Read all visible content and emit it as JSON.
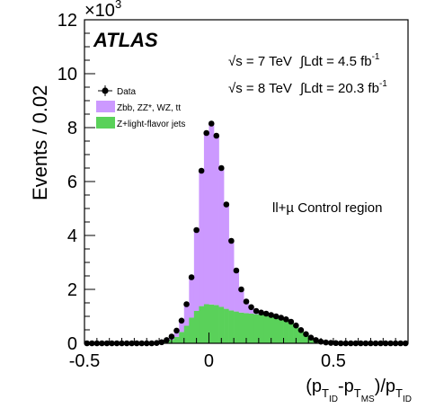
{
  "chart_data": {
    "type": "bar",
    "stacked": true,
    "x_range": [
      -0.5,
      0.8
    ],
    "y_range": [
      0,
      12000
    ],
    "bin_width": 0.02,
    "xlabel_parts": [
      "(p",
      "T",
      "ID",
      "-p",
      "T",
      "MS",
      ")/p",
      "T",
      "ID"
    ],
    "ylabel": "Events / 0.02",
    "y_multiplier": "×10",
    "y_multiplier_exp": "3",
    "x_ticks": [
      "-0.5",
      "0",
      "0.5"
    ],
    "x_tick_values": [
      -0.5,
      0,
      0.5
    ],
    "y_ticks": [
      "0",
      "2",
      "4",
      "6",
      "8",
      "10",
      "12"
    ],
    "y_tick_values": [
      0,
      2000,
      4000,
      6000,
      8000,
      10000,
      12000
    ],
    "bin_left_edges": [
      -0.5,
      -0.48,
      -0.46,
      -0.44,
      -0.42,
      -0.4,
      -0.38,
      -0.36,
      -0.34,
      -0.32,
      -0.3,
      -0.28,
      -0.26,
      -0.24,
      -0.22,
      -0.2,
      -0.18,
      -0.16,
      -0.14,
      -0.12,
      -0.1,
      -0.08,
      -0.06,
      -0.04,
      -0.02,
      0.0,
      0.02,
      0.04,
      0.06,
      0.08,
      0.1,
      0.12,
      0.14,
      0.16,
      0.18,
      0.2,
      0.22,
      0.24,
      0.26,
      0.28,
      0.3,
      0.32,
      0.34,
      0.36,
      0.38,
      0.4,
      0.42,
      0.44,
      0.46,
      0.48,
      0.5,
      0.52,
      0.54,
      0.56,
      0.58,
      0.6,
      0.62,
      0.64,
      0.66,
      0.68,
      0.7,
      0.72,
      0.74,
      0.76,
      0.78
    ],
    "series": [
      {
        "name": "Z+light-flavor jets",
        "color": "#5ad15a",
        "values": [
          0,
          0,
          0,
          0,
          0,
          0,
          0,
          0,
          0,
          0,
          0,
          0,
          0,
          0,
          5,
          20,
          60,
          130,
          240,
          420,
          650,
          950,
          1200,
          1380,
          1450,
          1440,
          1420,
          1350,
          1280,
          1220,
          1180,
          1140,
          1120,
          1100,
          1080,
          1060,
          1050,
          1020,
          980,
          930,
          870,
          780,
          650,
          480,
          330,
          200,
          110,
          60,
          30,
          15,
          8,
          0,
          0,
          0,
          0,
          0,
          0,
          0,
          0,
          0,
          0,
          0,
          0,
          0,
          0
        ]
      },
      {
        "name": "Zbb, ZZ*, WZ, tt",
        "color": "#cc99ff",
        "values": [
          0,
          0,
          0,
          0,
          0,
          0,
          0,
          0,
          0,
          0,
          0,
          0,
          0,
          0,
          5,
          20,
          60,
          120,
          230,
          420,
          800,
          1500,
          3000,
          4950,
          6300,
          6650,
          6250,
          5150,
          3870,
          2580,
          1520,
          860,
          430,
          240,
          120,
          80,
          50,
          30,
          20,
          20,
          20,
          20,
          10,
          10,
          5,
          0,
          0,
          0,
          0,
          0,
          0,
          0,
          0,
          0,
          0,
          0,
          0,
          0,
          0,
          0,
          0,
          0,
          0,
          0,
          0
        ]
      }
    ],
    "data_points": {
      "name": "Data",
      "x": [
        -0.49,
        -0.47,
        -0.45,
        -0.43,
        -0.41,
        -0.39,
        -0.37,
        -0.35,
        -0.33,
        -0.31,
        -0.29,
        -0.27,
        -0.25,
        -0.23,
        -0.21,
        -0.19,
        -0.17,
        -0.15,
        -0.13,
        -0.11,
        -0.09,
        -0.07,
        -0.05,
        -0.03,
        -0.01,
        0.01,
        0.03,
        0.05,
        0.07,
        0.09,
        0.11,
        0.13,
        0.15,
        0.17,
        0.19,
        0.21,
        0.23,
        0.25,
        0.27,
        0.29,
        0.31,
        0.33,
        0.35,
        0.37,
        0.39,
        0.41,
        0.43,
        0.45,
        0.47,
        0.49,
        0.51,
        0.53,
        0.55,
        0.57,
        0.59,
        0.61,
        0.63,
        0.65,
        0.67,
        0.69,
        0.71,
        0.73,
        0.75,
        0.77,
        0.79
      ],
      "y": [
        0,
        0,
        0,
        0,
        0,
        0,
        0,
        0,
        0,
        0,
        0,
        0,
        0,
        0,
        10,
        40,
        120,
        250,
        470,
        840,
        1450,
        2450,
        4200,
        6400,
        7800,
        8150,
        7700,
        6500,
        5150,
        3800,
        2700,
        2000,
        1550,
        1340,
        1200,
        1140,
        1100,
        1050,
        1000,
        950,
        890,
        800,
        660,
        490,
        340,
        210,
        120,
        60,
        30,
        15,
        8,
        0,
        0,
        0,
        0,
        0,
        0,
        0,
        0,
        0,
        0,
        0,
        0,
        0,
        0
      ]
    },
    "legend": {
      "placement": "top-left",
      "entries": [
        {
          "label": "Data",
          "kind": "marker"
        },
        {
          "label": "Zbb, ZZ*, WZ, tt",
          "kind": "fill",
          "color": "#cc99ff"
        },
        {
          "label": "Z+light-flavor jets",
          "kind": "fill",
          "color": "#5ad15a"
        }
      ]
    },
    "annotations": {
      "experiment": "ATLAS",
      "lumi_7_energy": "√s = 7 TeV",
      "lumi_7_int": "∫Ldt = 4.5 fb",
      "lumi_7_exp": "-1",
      "lumi_8_energy": "√s = 8 TeV",
      "lumi_8_int": "∫Ldt = 20.3 fb",
      "lumi_8_exp": "-1",
      "region": "ll+µ Control region"
    }
  }
}
